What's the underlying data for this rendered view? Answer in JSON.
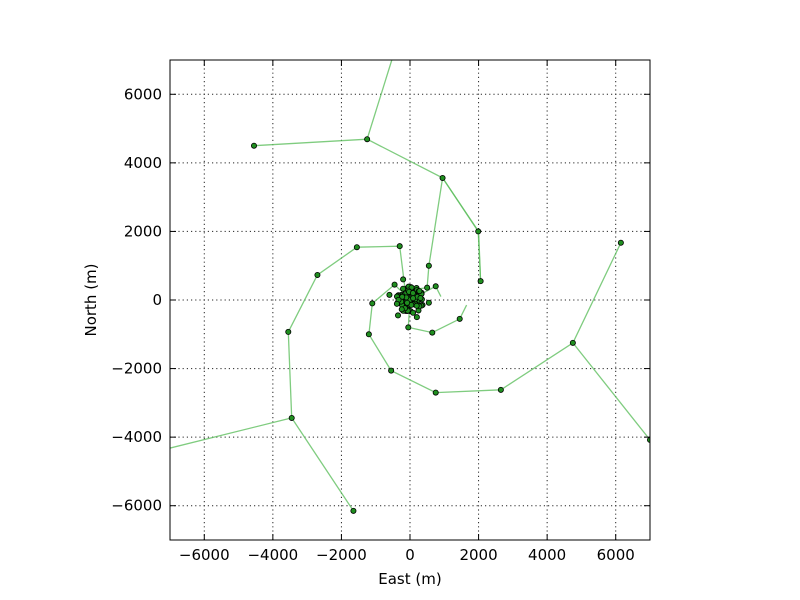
{
  "chart_data": {
    "type": "scatter",
    "title": "",
    "xlabel": "East (m)",
    "ylabel": "North (m)",
    "xlim": [
      -7000,
      7000
    ],
    "ylim": [
      -7000,
      7000
    ],
    "xticks": [
      -6000,
      -4000,
      -2000,
      0,
      2000,
      4000,
      6000
    ],
    "yticks": [
      -6000,
      -4000,
      -2000,
      0,
      2000,
      4000,
      6000
    ],
    "xtick_labels": [
      "−6000",
      "−4000",
      "−2000",
      "0",
      "2000",
      "4000",
      "6000"
    ],
    "ytick_labels": [
      "−6000",
      "−4000",
      "−2000",
      "0",
      "2000",
      "4000",
      "6000"
    ],
    "grid": true,
    "colors": {
      "line": "#5fbf5f",
      "marker_fill": "#1f8f1f",
      "marker_edge": "#000000"
    },
    "arms": [
      {
        "x": [
          0,
          80,
          500,
          550,
          950,
          1990,
          2060
        ],
        "y": [
          0,
          300,
          360,
          1000,
          3560,
          2000,
          550
        ],
        "points": [
          [
            80,
            300
          ],
          [
            550,
            1000
          ],
          [
            500,
            360
          ],
          [
            950,
            3560
          ],
          [
            1990,
            2000
          ],
          [
            2060,
            550
          ]
        ]
      },
      {
        "x": [
          2060,
          2000,
          950,
          -1250,
          -4550
        ],
        "y": [
          550,
          2000,
          3560,
          4690,
          4500
        ],
        "points": [
          [
            -1250,
            4690
          ],
          [
            -4550,
            4500
          ]
        ]
      },
      {
        "x": [
          -1250,
          -530
        ],
        "y": [
          4690,
          7000
        ],
        "points": []
      },
      {
        "x": [
          0,
          -150,
          -300,
          -1550,
          -2700,
          -3550,
          -3450,
          -7000
        ],
        "y": [
          0,
          350,
          1570,
          1540,
          730,
          -930,
          -3440,
          -4320
        ],
        "points": [
          [
            -300,
            1570
          ],
          [
            -1550,
            1540
          ],
          [
            -2700,
            730
          ],
          [
            -3550,
            -930
          ],
          [
            -3450,
            -3440
          ]
        ]
      },
      {
        "x": [
          -3450,
          -1650
        ],
        "y": [
          -3440,
          -6150
        ],
        "points": [
          [
            -1650,
            -6150
          ]
        ]
      },
      {
        "x": [
          0,
          -450,
          -1100,
          -1200,
          -550,
          750,
          2650,
          4750,
          6150
        ],
        "y": [
          0,
          450,
          -100,
          -1000,
          -2060,
          -2700,
          -2620,
          -1250,
          1670
        ],
        "points": [
          [
            -450,
            450
          ],
          [
            -1100,
            -100
          ],
          [
            -1200,
            -1000
          ],
          [
            -550,
            -2060
          ],
          [
            750,
            -2700
          ],
          [
            2650,
            -2620
          ],
          [
            4750,
            -1250
          ],
          [
            6150,
            1670
          ]
        ]
      },
      {
        "x": [
          4750,
          7000
        ],
        "y": [
          -1250,
          -4080
        ],
        "points": [
          [
            7000,
            -4080
          ]
        ]
      },
      {
        "x": [
          0,
          -50,
          650,
          1450,
          1650
        ],
        "y": [
          0,
          -800,
          -950,
          -550,
          -150
        ],
        "points": [
          [
            -50,
            -800
          ],
          [
            650,
            -950
          ],
          [
            1450,
            -550
          ]
        ]
      },
      {
        "x": [
          0,
          750,
          900
        ],
        "y": [
          0,
          400,
          100
        ],
        "points": [
          [
            750,
            400
          ]
        ]
      }
    ],
    "core_cluster": {
      "center": [
        0,
        0
      ],
      "radius_m": 400,
      "count": 90
    },
    "extra_points": [
      [
        -200,
        600
      ],
      [
        -350,
        -450
      ],
      [
        550,
        -80
      ],
      [
        200,
        -500
      ],
      [
        -600,
        150
      ]
    ]
  }
}
